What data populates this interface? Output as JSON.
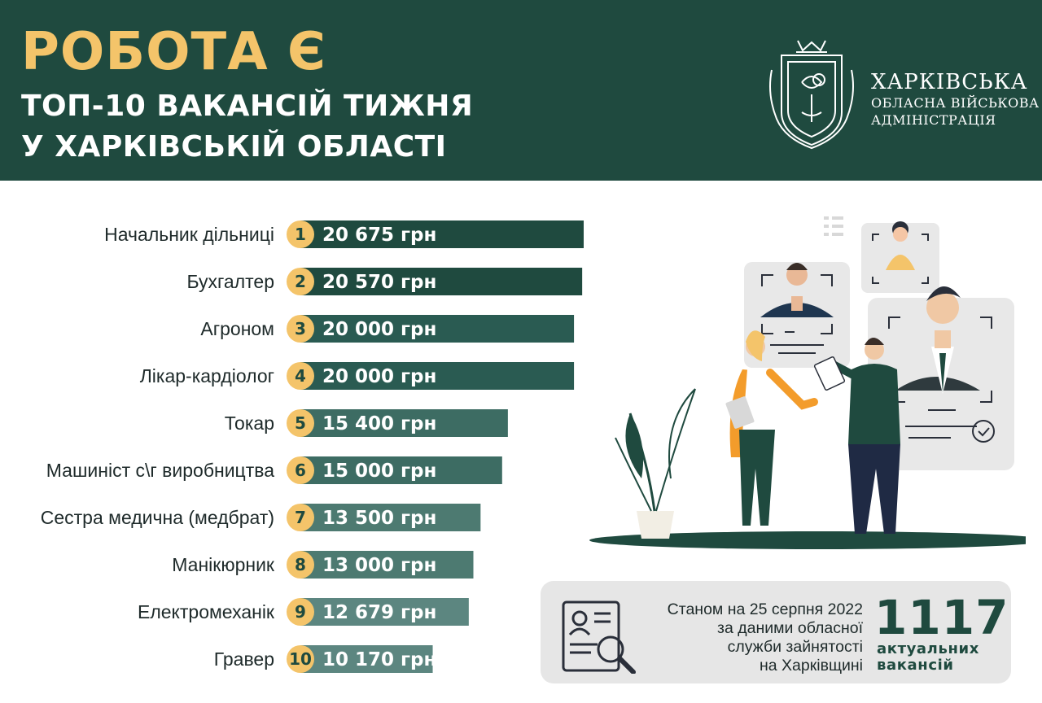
{
  "header": {
    "title": "РОБОТА Є",
    "subtitle_line1": "ТОП-10 ВАКАНСІЙ ТИЖНЯ",
    "subtitle_line2": "У ХАРКІВСЬКІЙ ОБЛАСТІ",
    "org_line1": "ХАРКІВСЬКА",
    "org_line2": "ОБЛАСНА ВІЙСЬКОВА",
    "org_line3": "АДМІНІСТРАЦІЯ"
  },
  "chart_data": {
    "type": "bar",
    "orientation": "horizontal",
    "categories": [
      "Начальник дільниці",
      "Бухгалтер",
      "Агроном",
      "Лікар-кардіолог",
      "Токар",
      "Машиніст с\\г виробництва",
      "Сестра медична (медбрат)",
      "Манікюрник",
      "Електромеханік",
      "Гравер"
    ],
    "ranks": [
      "1",
      "2",
      "3",
      "4",
      "5",
      "6",
      "7",
      "8",
      "9",
      "10"
    ],
    "values": [
      20675,
      20570,
      20000,
      20000,
      15400,
      15000,
      13500,
      13000,
      12679,
      10170
    ],
    "value_labels": [
      "20 675 грн",
      "20 570 грн",
      "20 000 грн",
      "20 000 грн",
      "15 400 грн",
      "15 000 грн",
      "13 500 грн",
      "13 000 грн",
      "12 679 грн",
      "10 170 грн"
    ],
    "unit": "грн",
    "colors": [
      "#1f4a3f",
      "#1f4a3f",
      "#2a5b52",
      "#2a5b52",
      "#3d6c63",
      "#3d6c63",
      "#4d7a71",
      "#4d7a71",
      "#5c8680",
      "#5c8680"
    ],
    "badge_color": "#f4c46a"
  },
  "info": {
    "text_line1": "Станом на 25 серпня 2022",
    "text_line2": "за даними обласної",
    "text_line3": "служби зайнятості",
    "text_line4": "на Харківщині",
    "count": "1117",
    "count_label_line1": "актуальних",
    "count_label_line2": "вакансій"
  },
  "icons": {
    "crest": "kharkiv-crest-icon",
    "resume": "resume-search-icon"
  },
  "colors": {
    "header_bg": "#1f4a3f",
    "accent": "#f4c46a",
    "info_bg": "#e6e6e6"
  }
}
